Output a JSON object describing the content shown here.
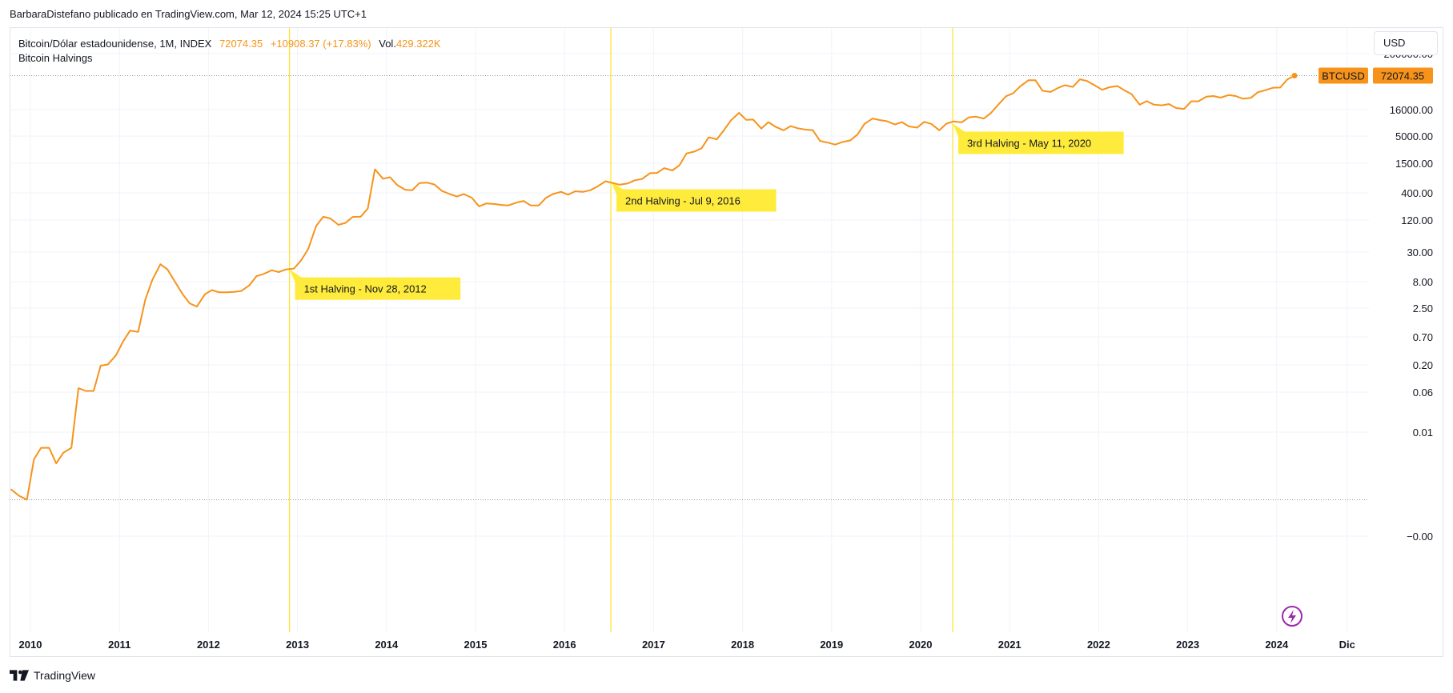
{
  "attribution": "BarbaraDistefano publicado en TradingView.com, Mar 12, 2024 15:25 UTC+1",
  "legend": {
    "symbol": "Bitcoin/Dólar estadounidense, 1M, INDEX",
    "close": "72074.35",
    "change": "+10908.37 (+17.83%)",
    "vol_label": "Vol.",
    "vol_value": "429.322K",
    "indicator": "Bitcoin Halvings"
  },
  "currency_button": "USD",
  "brand": "TradingView",
  "colors": {
    "line": "#f7931a",
    "halving_line": "#ffe227",
    "halving_label_bg": "#ffeb3b",
    "grid": "#f0f3fa",
    "axis_text": "#131722",
    "price_tag_bg": "#f7931a"
  },
  "chart_data": {
    "type": "line",
    "title": "Bitcoin/Dólar estadounidense, 1M, INDEX",
    "y_scale": "log",
    "y_tick_labels": [
      "200000.00",
      "16000.00",
      "5000.00",
      "1500.00",
      "400.00",
      "120.00",
      "30.00",
      "8.00",
      "2.50",
      "0.70",
      "0.20",
      "0.06",
      "0.01",
      "−0.00"
    ],
    "x_tick_labels": [
      "2010",
      "2011",
      "2012",
      "2013",
      "2014",
      "2015",
      "2016",
      "2017",
      "2018",
      "2019",
      "2020",
      "2021",
      "2022",
      "2023",
      "2024",
      "Dic"
    ],
    "last_price_label": "BTCUSD",
    "last_price": "72074.35",
    "series": [
      {
        "x": [
          2009.78,
          2009.87,
          2009.96,
          2010.04,
          2010.12,
          2010.21,
          2010.29,
          2010.37,
          2010.46,
          2010.54,
          2010.62,
          2010.71,
          2010.79,
          2010.87,
          2010.96,
          2011.04,
          2011.12,
          2011.21,
          2011.29,
          2011.37,
          2011.46,
          2011.54,
          2011.62,
          2011.71,
          2011.79,
          2011.87,
          2011.96,
          2012.04,
          2012.12,
          2012.21,
          2012.29,
          2012.37,
          2012.46,
          2012.54,
          2012.62,
          2012.71,
          2012.79,
          2012.87,
          2012.96,
          2013.04,
          2013.12,
          2013.21,
          2013.29,
          2013.37,
          2013.46,
          2013.54,
          2013.62,
          2013.71,
          2013.79,
          2013.87,
          2013.96,
          2014.04,
          2014.12,
          2014.21,
          2014.29,
          2014.37,
          2014.46,
          2014.54,
          2014.62,
          2014.71,
          2014.79,
          2014.87,
          2014.96,
          2015.04,
          2015.12,
          2015.21,
          2015.29,
          2015.37,
          2015.46,
          2015.54,
          2015.62,
          2015.71,
          2015.79,
          2015.87,
          2015.96,
          2016.04,
          2016.12,
          2016.21,
          2016.29,
          2016.37,
          2016.46,
          2016.54,
          2016.62,
          2016.71,
          2016.79,
          2016.87,
          2016.96,
          2017.04,
          2017.12,
          2017.21,
          2017.29,
          2017.37,
          2017.46,
          2017.54,
          2017.62,
          2017.71,
          2017.79,
          2017.87,
          2017.96,
          2018.04,
          2018.12,
          2018.21,
          2018.29,
          2018.37,
          2018.46,
          2018.54,
          2018.62,
          2018.71,
          2018.79,
          2018.87,
          2018.96,
          2019.04,
          2019.12,
          2019.21,
          2019.29,
          2019.37,
          2019.46,
          2019.54,
          2019.62,
          2019.71,
          2019.79,
          2019.87,
          2019.96,
          2020.04,
          2020.12,
          2020.21,
          2020.29,
          2020.37,
          2020.46,
          2020.54,
          2020.62,
          2020.71,
          2020.79,
          2020.87,
          2020.96,
          2021.04,
          2021.12,
          2021.21,
          2021.29,
          2021.37,
          2021.46,
          2021.54,
          2021.62,
          2021.71,
          2021.79,
          2021.87,
          2021.96,
          2022.04,
          2022.12,
          2022.21,
          2022.29,
          2022.37,
          2022.46,
          2022.54,
          2022.62,
          2022.71,
          2022.79,
          2022.87,
          2022.96,
          2023.04,
          2023.12,
          2023.21,
          2023.29,
          2023.37,
          2023.46,
          2023.54,
          2023.62,
          2023.71,
          2023.79,
          2023.87,
          2023.96,
          2024.04,
          2024.12,
          2024.2
        ],
        "y": [
          0.0008,
          0.0006,
          0.0005,
          0.003,
          0.005,
          0.005,
          0.0025,
          0.004,
          0.005,
          0.07,
          0.062,
          0.062,
          0.19,
          0.2,
          0.3,
          0.55,
          0.9,
          0.85,
          3.5,
          8.5,
          17,
          13.5,
          8,
          4.5,
          3,
          2.6,
          4.5,
          5.4,
          4.9,
          4.9,
          5,
          5.2,
          6.7,
          10,
          11,
          13,
          12,
          13.5,
          14,
          20,
          33,
          93,
          139,
          129,
          97,
          106,
          138,
          140,
          200,
          1135,
          750,
          800,
          570,
          460,
          450,
          620,
          630,
          580,
          440,
          380,
          340,
          380,
          320,
          220,
          250,
          245,
          235,
          230,
          260,
          280,
          230,
          230,
          320,
          380,
          420,
          370,
          430,
          420,
          450,
          530,
          670,
          620,
          575,
          610,
          700,
          740,
          960,
          970,
          1200,
          1080,
          1350,
          2300,
          2500,
          2900,
          4700,
          4300,
          6400,
          10000,
          13900,
          10200,
          10300,
          6900,
          9200,
          7500,
          6400,
          7700,
          7000,
          6600,
          6400,
          4000,
          3700,
          3400,
          3800,
          4100,
          5300,
          8500,
          10800,
          10100,
          9600,
          8300,
          9200,
          7600,
          7200,
          9300,
          8500,
          6400,
          8600,
          9500,
          9100,
          11300,
          11700,
          10800,
          13800,
          19700,
          29000,
          33000,
          45000,
          58700,
          58800,
          37000,
          35000,
          41500,
          47100,
          43800,
          61300,
          57000,
          46300,
          38500,
          43200,
          45500,
          37600,
          31800,
          19900,
          23300,
          20000,
          19400,
          20500,
          17200,
          16500,
          23100,
          23100,
          28500,
          29200,
          27200,
          30500,
          29200,
          25900,
          27000,
          34600,
          37700,
          42300,
          42600,
          61200,
          72074.35
        ]
      }
    ],
    "annotations": [
      {
        "x": 2012.91,
        "text": "1st Halving - Nov 28, 2012"
      },
      {
        "x": 2016.52,
        "text": "2nd Halving - Jul 9, 2016"
      },
      {
        "x": 2020.36,
        "text": "3rd Halving - May 11, 2020"
      }
    ]
  }
}
